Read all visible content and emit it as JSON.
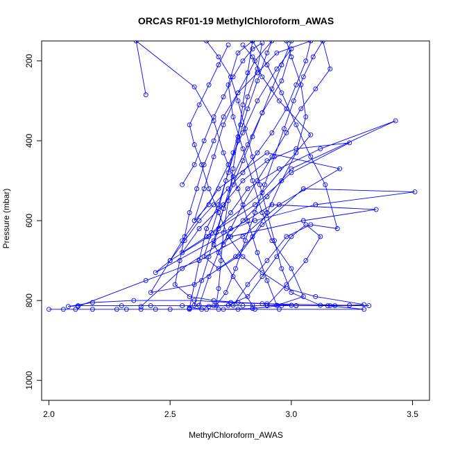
{
  "chart_data": {
    "type": "scatter",
    "title": "ORCAS RF01-19 MethylChloroform_AWAS",
    "xlabel": "MethylChloroform_AWAS",
    "ylabel": "Pressure (mbar)",
    "xlim": [
      1.97,
      3.57
    ],
    "ylim": [
      1050,
      150
    ],
    "y_reversed": true,
    "grid": false,
    "legend": "none",
    "color": "#0000ff",
    "xticks": [
      2.0,
      2.5,
      3.0,
      3.5
    ],
    "xtick_labels": [
      "2.0",
      "2.5",
      "3.0",
      "3.5"
    ],
    "yticks": [
      200,
      400,
      600,
      800,
      1000
    ],
    "ytick_labels": [
      "200",
      "400",
      "600",
      "800",
      "1000"
    ],
    "series": [
      {
        "points": [
          [
            2.0,
            822
          ],
          [
            2.06,
            822
          ],
          [
            2.11,
            822
          ],
          [
            2.18,
            822
          ],
          [
            2.28,
            822
          ],
          [
            2.32,
            822
          ],
          [
            2.38,
            822
          ],
          [
            2.44,
            822
          ],
          [
            2.5,
            822
          ],
          [
            2.58,
            822
          ],
          [
            2.63,
            822
          ],
          [
            2.7,
            822
          ],
          [
            2.78,
            822
          ],
          [
            2.85,
            822
          ],
          [
            2.95,
            822
          ],
          [
            3.3,
            822
          ],
          [
            3.15,
            813
          ],
          [
            3.02,
            813
          ],
          [
            2.9,
            813
          ],
          [
            2.8,
            813
          ],
          [
            2.68,
            813
          ],
          [
            2.55,
            813
          ],
          [
            2.42,
            813
          ],
          [
            2.3,
            813
          ],
          [
            2.12,
            813
          ],
          [
            2.08,
            815
          ],
          [
            2.18,
            805
          ],
          [
            2.35,
            800
          ],
          [
            2.6,
            800
          ],
          [
            2.75,
            805
          ],
          [
            2.88,
            808
          ],
          [
            3.32,
            813
          ],
          [
            3.18,
            813
          ],
          [
            2.96,
            813
          ],
          [
            2.84,
            820
          ],
          [
            2.72,
            822
          ],
          [
            2.65,
            822
          ],
          [
            2.58,
            818
          ]
        ]
      },
      {
        "points": [
          [
            2.12,
            815
          ],
          [
            2.4,
            750
          ],
          [
            2.62,
            700
          ],
          [
            2.8,
            640
          ],
          [
            2.95,
            560
          ],
          [
            3.2,
            470
          ],
          [
            2.9,
            430
          ],
          [
            2.7,
            520
          ],
          [
            2.55,
            650
          ],
          [
            2.42,
            780
          ],
          [
            2.6,
            760
          ],
          [
            2.78,
            690
          ],
          [
            2.88,
            610
          ],
          [
            3.05,
            520
          ],
          [
            3.51,
            528
          ],
          [
            3.1,
            560
          ],
          [
            2.85,
            600
          ],
          [
            2.66,
            640
          ],
          [
            2.5,
            700
          ],
          [
            2.44,
            730
          ],
          [
            2.68,
            650
          ],
          [
            2.92,
            560
          ],
          [
            3.35,
            572
          ],
          [
            3.05,
            600
          ],
          [
            2.75,
            640
          ],
          [
            2.55,
            720
          ],
          [
            2.38,
            815
          ]
        ]
      },
      {
        "points": [
          [
            2.72,
            660
          ],
          [
            2.8,
            600
          ],
          [
            2.9,
            540
          ],
          [
            3.0,
            470
          ],
          [
            3.43,
            350
          ],
          [
            3.12,
            420
          ],
          [
            2.95,
            470
          ],
          [
            2.82,
            520
          ],
          [
            2.75,
            580
          ],
          [
            2.7,
            620
          ],
          [
            2.85,
            560
          ],
          [
            3.0,
            480
          ],
          [
            3.24,
            405
          ],
          [
            3.02,
            420
          ],
          [
            2.9,
            450
          ],
          [
            2.8,
            500
          ],
          [
            2.72,
            560
          ],
          [
            2.62,
            620
          ],
          [
            2.55,
            680
          ],
          [
            2.65,
            640
          ],
          [
            2.88,
            530
          ],
          [
            3.08,
            385
          ],
          [
            2.95,
            300
          ],
          [
            2.88,
            240
          ],
          [
            2.84,
            190
          ],
          [
            2.8,
            160
          ]
        ]
      },
      {
        "points": [
          [
            2.58,
            820
          ],
          [
            2.62,
            700
          ],
          [
            2.65,
            620
          ],
          [
            2.7,
            560
          ],
          [
            2.74,
            480
          ],
          [
            2.78,
            400
          ],
          [
            2.82,
            320
          ],
          [
            2.86,
            250
          ],
          [
            2.9,
            180
          ],
          [
            2.92,
            150
          ],
          [
            2.85,
            200
          ],
          [
            2.78,
            280
          ],
          [
            2.72,
            360
          ],
          [
            2.68,
            440
          ],
          [
            2.64,
            520
          ],
          [
            2.6,
            600
          ],
          [
            2.66,
            560
          ],
          [
            2.74,
            460
          ],
          [
            2.8,
            380
          ],
          [
            2.86,
            300
          ],
          [
            2.94,
            220
          ],
          [
            3.0,
            170
          ],
          [
            2.96,
            250
          ],
          [
            2.88,
            330
          ],
          [
            2.82,
            410
          ],
          [
            2.76,
            490
          ],
          [
            2.72,
            570
          ],
          [
            2.68,
            660
          ],
          [
            2.76,
            740
          ],
          [
            2.84,
            812
          ]
        ]
      },
      {
        "points": [
          [
            2.4,
            285
          ],
          [
            2.36,
            150
          ],
          [
            2.6,
            265
          ],
          [
            2.68,
            350
          ],
          [
            2.72,
            430
          ],
          [
            2.78,
            520
          ],
          [
            2.82,
            600
          ],
          [
            2.86,
            680
          ],
          [
            2.9,
            750
          ],
          [
            2.94,
            812
          ],
          [
            3.05,
            790
          ],
          [
            3.0,
            720
          ],
          [
            2.92,
            650
          ],
          [
            2.88,
            580
          ],
          [
            2.84,
            500
          ],
          [
            2.8,
            420
          ],
          [
            2.76,
            340
          ],
          [
            2.74,
            260
          ],
          [
            2.78,
            180
          ],
          [
            2.84,
            150
          ],
          [
            2.9,
            210
          ],
          [
            2.96,
            280
          ],
          [
            3.02,
            360
          ],
          [
            3.08,
            440
          ],
          [
            3.14,
            510
          ],
          [
            3.19,
            620
          ],
          [
            3.08,
            610
          ],
          [
            2.98,
            640
          ],
          [
            2.9,
            700
          ],
          [
            2.82,
            760
          ],
          [
            2.76,
            812
          ]
        ]
      },
      {
        "points": [
          [
            2.55,
            510
          ],
          [
            2.6,
            460
          ],
          [
            2.64,
            400
          ],
          [
            2.68,
            340
          ],
          [
            2.72,
            290
          ],
          [
            2.76,
            240
          ],
          [
            2.8,
            200
          ],
          [
            2.84,
            170
          ],
          [
            2.88,
            155
          ],
          [
            2.86,
            220
          ],
          [
            2.82,
            290
          ],
          [
            2.79,
            360
          ],
          [
            2.76,
            430
          ],
          [
            2.73,
            500
          ],
          [
            2.7,
            570
          ],
          [
            2.67,
            630
          ],
          [
            2.64,
            690
          ],
          [
            2.7,
            720
          ],
          [
            2.77,
            690
          ],
          [
            2.84,
            640
          ],
          [
            2.9,
            580
          ],
          [
            2.96,
            500
          ],
          [
            3.02,
            430
          ],
          [
            3.06,
            340
          ],
          [
            3.04,
            260
          ],
          [
            3.0,
            190
          ],
          [
            2.98,
            150
          ]
        ]
      },
      {
        "points": [
          [
            2.65,
            150
          ],
          [
            2.7,
            190
          ],
          [
            2.75,
            240
          ],
          [
            2.78,
            300
          ],
          [
            2.81,
            370
          ],
          [
            2.84,
            440
          ],
          [
            2.87,
            510
          ],
          [
            2.9,
            580
          ],
          [
            2.93,
            650
          ],
          [
            2.96,
            720
          ],
          [
            3.0,
            780
          ],
          [
            3.12,
            812
          ],
          [
            3.24,
            812
          ],
          [
            3.3,
            810
          ],
          [
            3.1,
            790
          ],
          [
            2.98,
            770
          ],
          [
            2.88,
            730
          ],
          [
            2.8,
            690
          ],
          [
            2.74,
            640
          ],
          [
            2.7,
            580
          ],
          [
            2.66,
            520
          ],
          [
            2.63,
            460
          ],
          [
            2.6,
            410
          ],
          [
            2.58,
            360
          ],
          [
            2.62,
            310
          ],
          [
            2.66,
            260
          ],
          [
            2.7,
            210
          ],
          [
            2.74,
            160
          ]
        ]
      },
      {
        "points": [
          [
            3.0,
            150
          ],
          [
            2.96,
            210
          ],
          [
            2.92,
            270
          ],
          [
            2.88,
            330
          ],
          [
            2.84,
            390
          ],
          [
            2.8,
            450
          ],
          [
            2.76,
            510
          ],
          [
            2.72,
            570
          ],
          [
            2.69,
            630
          ],
          [
            2.66,
            690
          ],
          [
            2.63,
            750
          ],
          [
            2.6,
            812
          ],
          [
            2.66,
            815
          ],
          [
            2.74,
            812
          ],
          [
            2.82,
            790
          ],
          [
            2.88,
            740
          ],
          [
            2.94,
            690
          ],
          [
            3.0,
            640
          ],
          [
            3.06,
            610
          ],
          [
            3.12,
            640
          ],
          [
            3.06,
            700
          ],
          [
            2.98,
            760
          ],
          [
            2.9,
            812
          ],
          [
            3.02,
            813
          ],
          [
            3.16,
            813
          ]
        ]
      },
      {
        "points": [
          [
            2.84,
            150
          ],
          [
            2.82,
            230
          ],
          [
            2.8,
            310
          ],
          [
            2.78,
            390
          ],
          [
            2.76,
            470
          ],
          [
            2.74,
            550
          ],
          [
            2.72,
            630
          ],
          [
            2.71,
            700
          ],
          [
            2.7,
            770
          ],
          [
            2.69,
            812
          ],
          [
            2.73,
            780
          ],
          [
            2.77,
            720
          ],
          [
            2.81,
            650
          ],
          [
            2.85,
            580
          ],
          [
            2.89,
            510
          ],
          [
            2.93,
            440
          ],
          [
            2.97,
            370
          ],
          [
            3.01,
            300
          ],
          [
            3.05,
            240
          ],
          [
            3.09,
            190
          ],
          [
            3.13,
            150
          ],
          [
            3.16,
            220
          ],
          [
            3.1,
            270
          ],
          [
            3.04,
            320
          ],
          [
            2.98,
            380
          ],
          [
            2.92,
            440
          ],
          [
            2.86,
            500
          ],
          [
            2.8,
            560
          ],
          [
            2.75,
            620
          ],
          [
            2.7,
            680
          ],
          [
            2.66,
            740
          ],
          [
            2.62,
            812
          ]
        ]
      },
      {
        "points": [
          [
            2.5,
            700
          ],
          [
            2.56,
            650
          ],
          [
            2.62,
            600
          ],
          [
            2.68,
            560
          ],
          [
            2.74,
            520
          ],
          [
            2.8,
            480
          ],
          [
            2.86,
            430
          ],
          [
            2.92,
            380
          ],
          [
            2.98,
            320
          ],
          [
            3.02,
            260
          ],
          [
            3.06,
            200
          ],
          [
            3.08,
            150
          ],
          [
            2.94,
            180
          ],
          [
            2.86,
            230
          ],
          [
            2.78,
            280
          ],
          [
            2.72,
            340
          ],
          [
            2.68,
            400
          ],
          [
            2.64,
            460
          ],
          [
            2.61,
            520
          ],
          [
            2.58,
            580
          ],
          [
            2.56,
            640
          ],
          [
            2.54,
            700
          ],
          [
            2.52,
            760
          ],
          [
            2.58,
            790
          ],
          [
            2.68,
            800
          ],
          [
            2.78,
            805
          ],
          [
            2.9,
            808
          ],
          [
            3.0,
            812
          ]
        ]
      }
    ]
  }
}
